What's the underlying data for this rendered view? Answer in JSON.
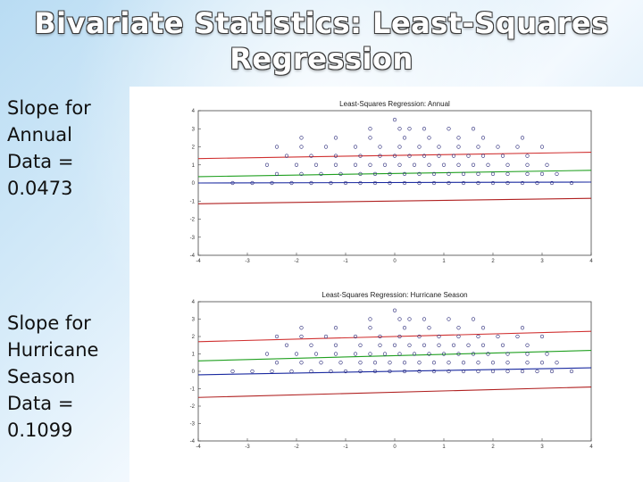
{
  "slide": {
    "title_line1": "Bivariate Statistics: Least-Squares",
    "title_line2": "Regression",
    "annual": {
      "line1": "Slope for",
      "line2": "Annual",
      "line3": "Data =",
      "line4": "0.0473"
    },
    "hurricane": {
      "line1": "Slope for",
      "line2": "Hurricane",
      "line3": "Season",
      "line4": "Data =",
      "line5": "0.1099"
    }
  },
  "chart_data": [
    {
      "type": "scatter",
      "title": "Least-Squares Regression: Annual",
      "xlim": [
        -4,
        4
      ],
      "ylim": [
        -4,
        4
      ],
      "x_ticks": [
        -4,
        -3,
        -2,
        -1,
        0,
        1,
        2,
        3,
        4
      ],
      "y_ticks": [
        -4,
        -3,
        -2,
        -1,
        0,
        1,
        2,
        3,
        4
      ],
      "regression_slope": 0.0473,
      "point_rows": [
        {
          "y": 3.5,
          "x": [
            0
          ]
        },
        {
          "y": 3,
          "x": [
            -0.5,
            0.1,
            0.3,
            0.6,
            1.1,
            1.6
          ]
        },
        {
          "y": 2.5,
          "x": [
            -1.9,
            -1.2,
            -0.5,
            0.2,
            0.7,
            1.3,
            1.8,
            2.6
          ]
        },
        {
          "y": 2,
          "x": [
            -2.4,
            -1.9,
            -1.4,
            -0.8,
            -0.3,
            0.1,
            0.5,
            0.9,
            1.3,
            1.7,
            2.1,
            2.5,
            3.0
          ]
        },
        {
          "y": 1.5,
          "x": [
            -2.2,
            -1.7,
            -1.2,
            -0.7,
            -0.3,
            0.0,
            0.3,
            0.6,
            0.9,
            1.2,
            1.5,
            1.8,
            2.2,
            2.7
          ]
        },
        {
          "y": 1,
          "x": [
            -2.6,
            -2.0,
            -1.6,
            -1.2,
            -0.8,
            -0.5,
            -0.2,
            0.1,
            0.4,
            0.7,
            1.0,
            1.3,
            1.6,
            1.9,
            2.3,
            2.7,
            3.1
          ]
        },
        {
          "y": 0.5,
          "x": [
            -2.4,
            -1.9,
            -1.5,
            -1.1,
            -0.7,
            -0.4,
            -0.1,
            0.2,
            0.5,
            0.8,
            1.1,
            1.4,
            1.7,
            2.0,
            2.3,
            2.7,
            3.0,
            3.3
          ]
        },
        {
          "y": 0,
          "x": [
            -3.3,
            -2.9,
            -2.5,
            -2.1,
            -1.7,
            -1.3,
            -1.0,
            -0.7,
            -0.4,
            -0.1,
            0.2,
            0.5,
            0.8,
            1.1,
            1.4,
            1.7,
            2.0,
            2.3,
            2.6,
            2.9,
            3.2,
            3.6
          ]
        }
      ],
      "lines": [
        {
          "color": "#d03030",
          "y_at_xmin": 1.35,
          "y_at_xmax": 1.7
        },
        {
          "color": "#20a020",
          "y_at_xmin": 0.35,
          "y_at_xmax": 0.7
        },
        {
          "color": "#1a2aa0",
          "y_at_xmin": 0.0,
          "y_at_xmax": 0.05
        },
        {
          "color": "#b02020",
          "y_at_xmin": -1.15,
          "y_at_xmax": -0.85
        }
      ]
    },
    {
      "type": "scatter",
      "title": "Least-Squares Regression: Hurricane Season",
      "xlim": [
        -4,
        4
      ],
      "ylim": [
        -4,
        4
      ],
      "x_ticks": [
        -4,
        -3,
        -2,
        -1,
        0,
        1,
        2,
        3,
        4
      ],
      "y_ticks": [
        -4,
        -3,
        -2,
        -1,
        0,
        1,
        2,
        3,
        4
      ],
      "regression_slope": 0.1099,
      "point_rows": [
        {
          "y": 3.5,
          "x": [
            0
          ]
        },
        {
          "y": 3,
          "x": [
            -0.5,
            0.1,
            0.3,
            0.6,
            1.1,
            1.6
          ]
        },
        {
          "y": 2.5,
          "x": [
            -1.9,
            -1.2,
            -0.5,
            0.2,
            0.7,
            1.3,
            1.8,
            2.6
          ]
        },
        {
          "y": 2,
          "x": [
            -2.4,
            -1.9,
            -1.4,
            -0.8,
            -0.3,
            0.1,
            0.5,
            0.9,
            1.3,
            1.7,
            2.1,
            2.5,
            3.0
          ]
        },
        {
          "y": 1.5,
          "x": [
            -2.2,
            -1.7,
            -1.2,
            -0.7,
            -0.3,
            0.0,
            0.3,
            0.6,
            0.9,
            1.2,
            1.5,
            1.8,
            2.2,
            2.7
          ]
        },
        {
          "y": 1,
          "x": [
            -2.6,
            -2.0,
            -1.6,
            -1.2,
            -0.8,
            -0.5,
            -0.2,
            0.1,
            0.4,
            0.7,
            1.0,
            1.3,
            1.6,
            1.9,
            2.3,
            2.7,
            3.1
          ]
        },
        {
          "y": 0.5,
          "x": [
            -2.4,
            -1.9,
            -1.5,
            -1.1,
            -0.7,
            -0.4,
            -0.1,
            0.2,
            0.5,
            0.8,
            1.1,
            1.4,
            1.7,
            2.0,
            2.3,
            2.7,
            3.0,
            3.3
          ]
        },
        {
          "y": 0,
          "x": [
            -3.3,
            -2.9,
            -2.5,
            -2.1,
            -1.7,
            -1.3,
            -1.0,
            -0.7,
            -0.4,
            -0.1,
            0.2,
            0.5,
            0.8,
            1.1,
            1.4,
            1.7,
            2.0,
            2.3,
            2.6,
            2.9,
            3.2,
            3.6
          ]
        }
      ],
      "lines": [
        {
          "color": "#d03030",
          "y_at_xmin": 1.7,
          "y_at_xmax": 2.3
        },
        {
          "color": "#20a020",
          "y_at_xmin": 0.6,
          "y_at_xmax": 1.2
        },
        {
          "color": "#1a2aa0",
          "y_at_xmin": -0.2,
          "y_at_xmax": 0.2
        },
        {
          "color": "#b02020",
          "y_at_xmin": -1.5,
          "y_at_xmax": -0.9
        }
      ]
    }
  ]
}
